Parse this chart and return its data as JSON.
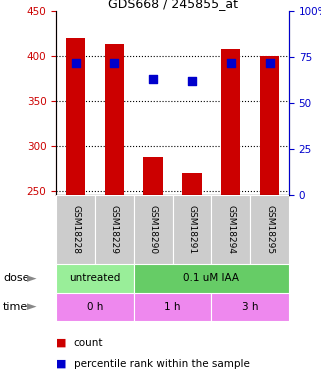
{
  "title": "GDS668 / 245855_at",
  "samples": [
    "GSM18228",
    "GSM18229",
    "GSM18290",
    "GSM18291",
    "GSM18294",
    "GSM18295"
  ],
  "count_values": [
    420,
    413,
    287,
    269,
    408,
    400
  ],
  "percentile_values": [
    72,
    72,
    63,
    62,
    72,
    72
  ],
  "ylim_left": [
    245,
    450
  ],
  "ylim_right": [
    0,
    100
  ],
  "yticks_left": [
    250,
    300,
    350,
    400,
    450
  ],
  "yticks_right": [
    0,
    25,
    50,
    75,
    100
  ],
  "bar_color": "#cc0000",
  "dot_color": "#0000cc",
  "dose_labels": [
    {
      "label": "untreated",
      "span": [
        0,
        2
      ],
      "color": "#99ee99"
    },
    {
      "label": "0.1 uM IAA",
      "span": [
        2,
        6
      ],
      "color": "#66cc66"
    }
  ],
  "time_labels": [
    {
      "label": "0 h",
      "span": [
        0,
        2
      ],
      "color": "#ee88ee"
    },
    {
      "label": "1 h",
      "span": [
        2,
        4
      ],
      "color": "#ee88ee"
    },
    {
      "label": "3 h",
      "span": [
        4,
        6
      ],
      "color": "#ee88ee"
    }
  ],
  "left_axis_color": "#cc0000",
  "right_axis_color": "#0000cc",
  "bar_width": 0.5,
  "dot_size": 30,
  "fig_width": 3.21,
  "fig_height": 3.75,
  "fig_dpi": 100
}
